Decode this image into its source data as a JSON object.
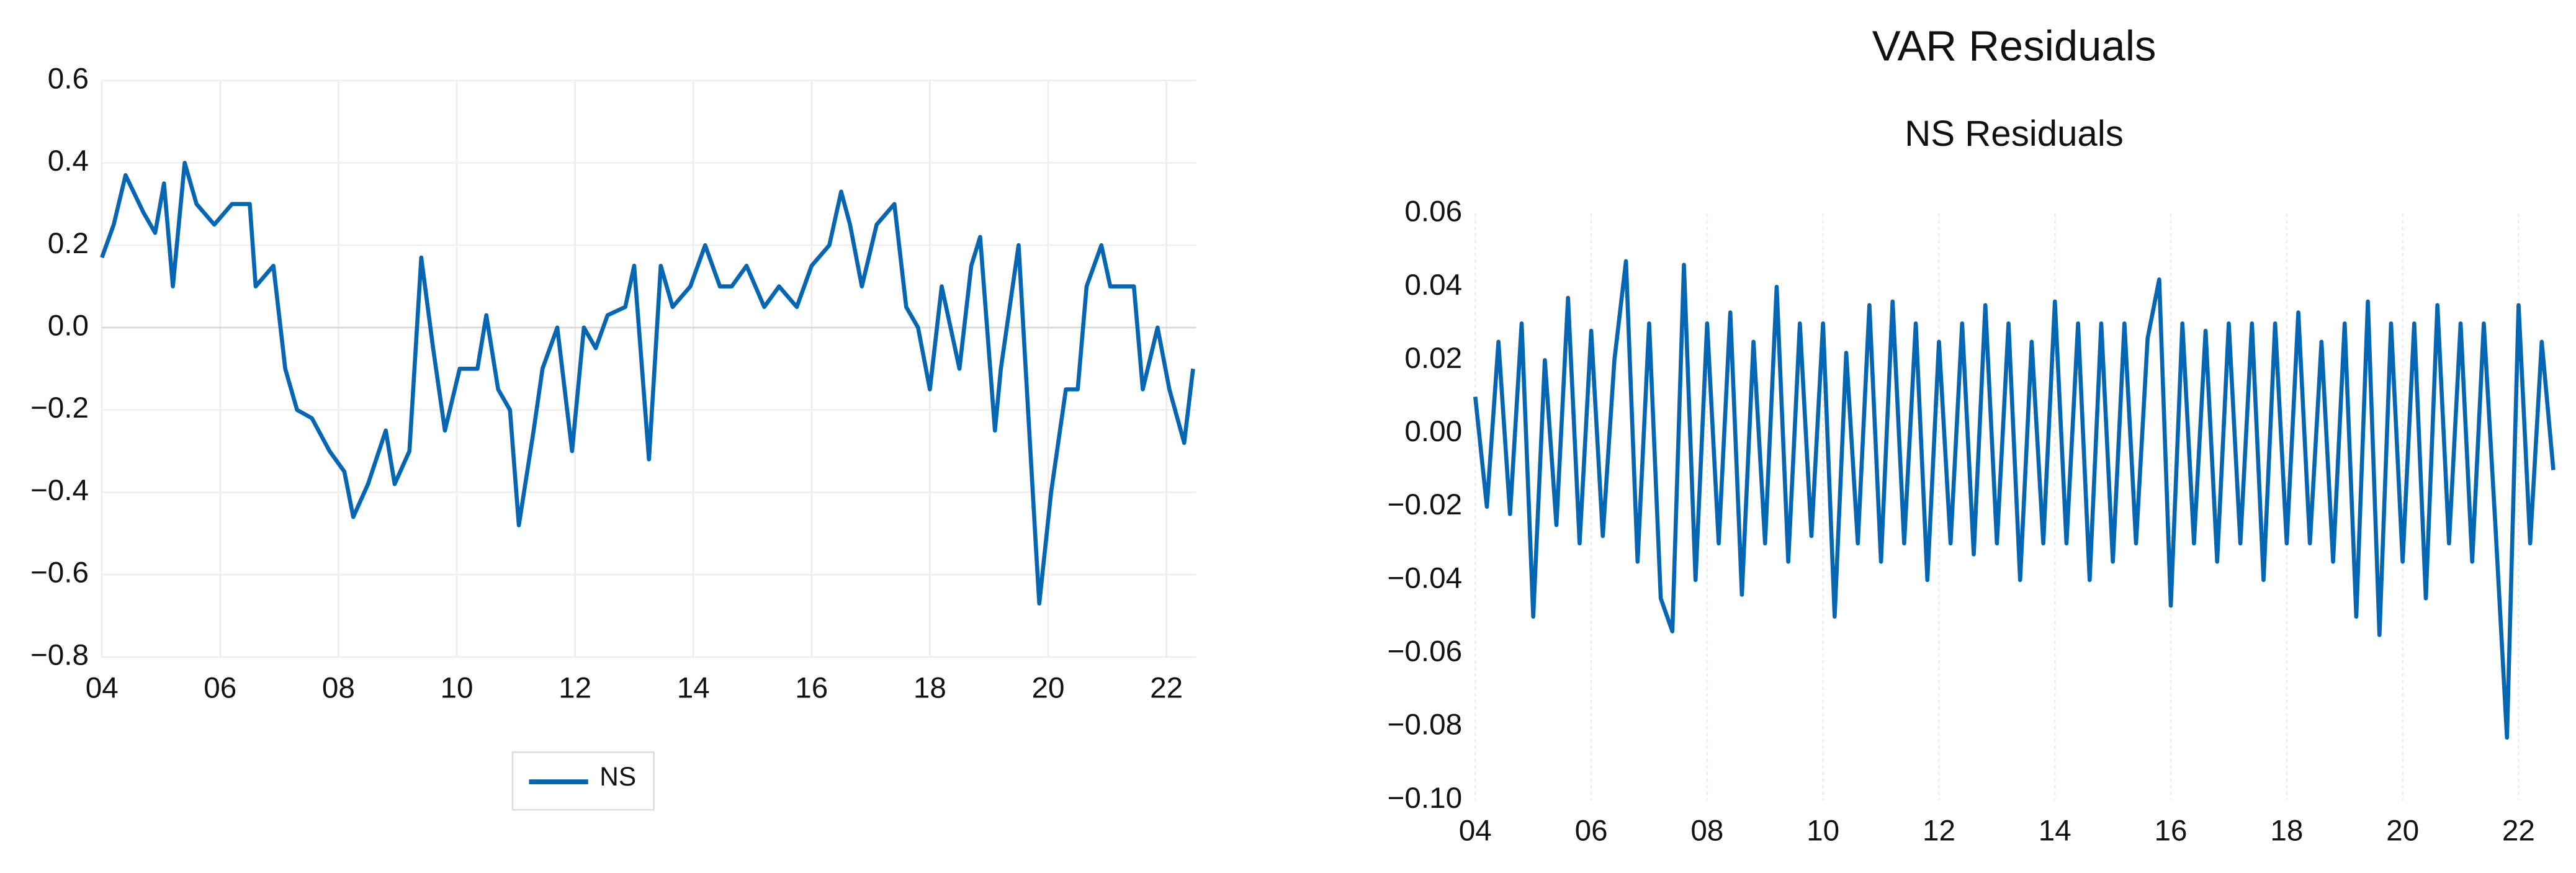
{
  "chart_data": [
    {
      "type": "line",
      "legend": "bottom",
      "grid": "both",
      "x": [
        4.0,
        4.2,
        4.4,
        4.7,
        4.9,
        5.05,
        5.2,
        5.4,
        5.6,
        5.9,
        6.2,
        6.5,
        6.6,
        6.9,
        7.1,
        7.3,
        7.55,
        7.85,
        8.1,
        8.25,
        8.5,
        8.8,
        8.95,
        9.2,
        9.4,
        9.6,
        9.8,
        10.05,
        10.35,
        10.5,
        10.7,
        10.9,
        11.05,
        11.3,
        11.45,
        11.7,
        11.95,
        12.15,
        12.35,
        12.55,
        12.85,
        13.0,
        13.25,
        13.45,
        13.65,
        13.95,
        14.2,
        14.45,
        14.65,
        14.9,
        15.2,
        15.45,
        15.75,
        16.0,
        16.3,
        16.5,
        16.65,
        16.85,
        17.1,
        17.4,
        17.6,
        17.8,
        18.0,
        18.2,
        18.5,
        18.7,
        18.85,
        19.1,
        19.2,
        19.5,
        19.8,
        19.85,
        20.05,
        20.3,
        20.5,
        20.65,
        20.9,
        21.05,
        21.45,
        21.6,
        21.85,
        22.05,
        22.3,
        22.45
      ],
      "series": [
        {
          "name": "NS",
          "color": "#0567b3",
          "values": [
            0.17,
            0.25,
            0.37,
            0.28,
            0.23,
            0.35,
            0.1,
            0.4,
            0.3,
            0.25,
            0.3,
            0.3,
            0.1,
            0.15,
            -0.1,
            -0.2,
            -0.22,
            -0.3,
            -0.35,
            -0.46,
            -0.38,
            -0.25,
            -0.38,
            -0.3,
            0.17,
            -0.05,
            -0.25,
            -0.1,
            -0.1,
            0.03,
            -0.15,
            -0.2,
            -0.48,
            -0.25,
            -0.1,
            0.0,
            -0.3,
            0.0,
            -0.05,
            0.03,
            0.05,
            0.15,
            -0.32,
            0.15,
            0.05,
            0.1,
            0.2,
            0.1,
            0.1,
            0.15,
            0.05,
            0.1,
            0.05,
            0.15,
            0.2,
            0.33,
            0.25,
            0.1,
            0.25,
            0.3,
            0.05,
            0.0,
            -0.15,
            0.1,
            -0.1,
            0.15,
            0.22,
            -0.25,
            -0.1,
            0.2,
            -0.55,
            -0.67,
            -0.4,
            -0.15,
            -0.15,
            0.1,
            0.2,
            0.1,
            0.1,
            -0.15,
            0.0,
            -0.15,
            -0.28,
            -0.1
          ]
        }
      ],
      "xlim": [
        4,
        22.5
      ],
      "xticks": [
        {
          "value": 4,
          "label": "04"
        },
        {
          "value": 6,
          "label": "06"
        },
        {
          "value": 8,
          "label": "08"
        },
        {
          "value": 10,
          "label": "10"
        },
        {
          "value": 12,
          "label": "12"
        },
        {
          "value": 14,
          "label": "14"
        },
        {
          "value": 16,
          "label": "16"
        },
        {
          "value": 18,
          "label": "18"
        },
        {
          "value": 20,
          "label": "20"
        },
        {
          "value": 22,
          "label": "22"
        }
      ],
      "ylim": [
        -0.8,
        0.6
      ],
      "yticks": [
        {
          "value": -0.8,
          "label": "−0.8"
        },
        {
          "value": -0.6,
          "label": "−0.6"
        },
        {
          "value": -0.4,
          "label": "−0.4"
        },
        {
          "value": -0.2,
          "label": "−0.2"
        },
        {
          "value": 0,
          "label": "0.0"
        },
        0.2,
        0.4,
        0.6
      ]
    },
    {
      "type": "line",
      "grid": "x",
      "title": "VAR Residuals",
      "subtitle": "NS Residuals",
      "color": "#0567b3",
      "x": [
        4.0,
        4.2,
        4.4,
        4.6,
        4.8,
        5.0,
        5.2,
        5.4,
        5.6,
        5.8,
        6.0,
        6.2,
        6.4,
        6.6,
        6.8,
        7.0,
        7.2,
        7.4,
        7.6,
        7.8,
        8.0,
        8.2,
        8.4,
        8.6,
        8.8,
        9.0,
        9.2,
        9.4,
        9.6,
        9.8,
        10.0,
        10.2,
        10.4,
        10.6,
        10.8,
        11.0,
        11.2,
        11.4,
        11.6,
        11.8,
        12.0,
        12.2,
        12.4,
        12.6,
        12.8,
        13.0,
        13.2,
        13.4,
        13.6,
        13.8,
        14.0,
        14.2,
        14.4,
        14.6,
        14.8,
        15.0,
        15.2,
        15.4,
        15.6,
        15.8,
        16.0,
        16.2,
        16.4,
        16.6,
        16.8,
        17.0,
        17.2,
        17.4,
        17.6,
        17.8,
        18.0,
        18.2,
        18.4,
        18.6,
        18.8,
        19.0,
        19.2,
        19.4,
        19.6,
        19.8,
        20.0,
        20.2,
        20.4,
        20.6,
        20.8,
        21.0,
        21.2,
        21.4,
        21.6,
        21.8,
        22.0,
        22.2,
        22.4,
        22.6
      ],
      "values": [
        0.01,
        -0.02,
        0.025,
        -0.022,
        0.03,
        -0.05,
        0.02,
        -0.025,
        0.037,
        -0.03,
        0.028,
        -0.028,
        0.02,
        0.047,
        -0.035,
        0.03,
        -0.045,
        -0.054,
        0.046,
        -0.04,
        0.03,
        -0.03,
        0.033,
        -0.044,
        0.025,
        -0.03,
        0.04,
        -0.035,
        0.03,
        -0.028,
        0.03,
        -0.05,
        0.022,
        -0.03,
        0.035,
        -0.035,
        0.036,
        -0.03,
        0.03,
        -0.04,
        0.025,
        -0.03,
        0.03,
        -0.033,
        0.035,
        -0.03,
        0.03,
        -0.04,
        0.025,
        -0.03,
        0.036,
        -0.03,
        0.03,
        -0.04,
        0.03,
        -0.035,
        0.03,
        -0.03,
        0.026,
        0.042,
        -0.047,
        0.03,
        -0.03,
        0.028,
        -0.035,
        0.03,
        -0.03,
        0.03,
        -0.04,
        0.03,
        -0.03,
        0.033,
        -0.03,
        0.025,
        -0.035,
        0.03,
        -0.05,
        0.036,
        -0.055,
        0.03,
        -0.035,
        0.03,
        -0.045,
        0.035,
        -0.03,
        0.03,
        -0.035,
        0.03,
        -0.025,
        -0.083,
        0.035,
        -0.03,
        0.025,
        -0.01
      ],
      "xlim": [
        4,
        22.65
      ],
      "xticks": [
        {
          "value": 4,
          "label": "04"
        },
        {
          "value": 6,
          "label": "06"
        },
        {
          "value": 8,
          "label": "08"
        },
        {
          "value": 10,
          "label": "10"
        },
        {
          "value": 12,
          "label": "12"
        },
        {
          "value": 14,
          "label": "14"
        },
        {
          "value": 16,
          "label": "16"
        },
        {
          "value": 18,
          "label": "18"
        },
        {
          "value": 20,
          "label": "20"
        },
        {
          "value": 22,
          "label": "22"
        }
      ],
      "ylim": [
        -0.1,
        0.06
      ],
      "yticks": [
        {
          "value": -0.1,
          "label": "−0.10"
        },
        {
          "value": -0.08,
          "label": "−0.08"
        },
        {
          "value": -0.06,
          "label": "−0.06"
        },
        {
          "value": -0.04,
          "label": "−0.04"
        },
        {
          "value": -0.02,
          "label": "−0.02"
        },
        {
          "value": 0,
          "label": "0.00"
        },
        0.02,
        0.04,
        0.06
      ]
    }
  ]
}
